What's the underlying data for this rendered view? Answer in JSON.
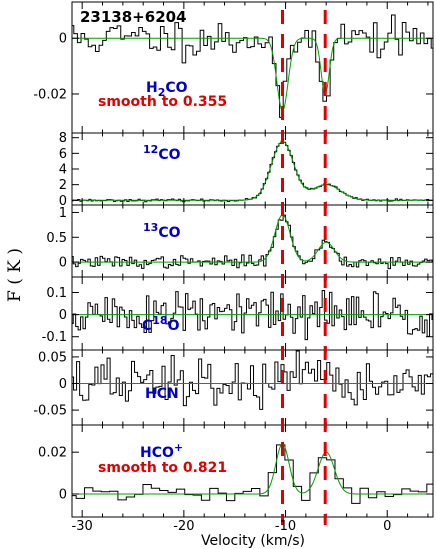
{
  "chart_data": {
    "type": "line",
    "title": "23138+6204",
    "xlabel": "Velocity (km/s)",
    "ylabel": "F ( K )",
    "xlim": [
      -31,
      4.5
    ],
    "xticks": [
      "-30",
      "-20",
      "-10",
      "0"
    ],
    "xtick_values": [
      -30,
      -20,
      -10,
      0
    ],
    "vlines": [
      -10.3,
      -6.1
    ],
    "colors": {
      "observed": "#000000",
      "fit": "#00a000",
      "vline": "#e00000",
      "molecule": "#0000cc"
    },
    "panels": [
      {
        "id": "h2co",
        "molecule": "H2CO",
        "mol_main": "H",
        "mol_sub": "2",
        "mol_tail": "CO",
        "smooth": "smooth to 0.355",
        "ylim": [
          -0.034,
          0.013
        ],
        "yticks": [
          0,
          -0.02
        ],
        "ytick_labels": [
          "0",
          "-0.02"
        ],
        "channel_width": 0.355,
        "seed": 11,
        "noise": 0.0035,
        "components": [
          {
            "amp": -0.026,
            "center": -10.3,
            "width": 0.55
          },
          {
            "amp": -0.02,
            "center": -6.1,
            "width": 0.4
          }
        ]
      },
      {
        "id": "co12",
        "molecule": "12CO",
        "mol_sup": "12",
        "mol_tail": "CO",
        "ylim": [
          -0.6,
          8.6
        ],
        "yticks": [
          0,
          2,
          4,
          6,
          8
        ],
        "ytick_labels": [
          "0",
          "2",
          "4",
          "6",
          "8"
        ],
        "channel_width": 0.22,
        "seed": 23,
        "noise": 0.07,
        "components": [
          {
            "amp": 7.5,
            "center": -10.3,
            "width": 1.1
          },
          {
            "amp": 2.0,
            "center": -6.0,
            "width": 1.4
          }
        ]
      },
      {
        "id": "co13",
        "molecule": "13CO",
        "mol_sup": "13",
        "mol_tail": "CO",
        "ylim": [
          -0.3,
          1.15
        ],
        "yticks": [
          0,
          0.5,
          1
        ],
        "ytick_labels": [
          "0",
          "0.5",
          "1"
        ],
        "channel_width": 0.24,
        "seed": 37,
        "noise": 0.06,
        "components": [
          {
            "amp": 0.95,
            "center": -10.3,
            "width": 0.75
          },
          {
            "amp": 0.4,
            "center": -6.0,
            "width": 0.8
          }
        ]
      },
      {
        "id": "c18o",
        "molecule": "C18O",
        "mol_main": "C",
        "mol_sup": "18",
        "mol_tail": "O",
        "ylim": [
          -0.16,
          0.17
        ],
        "yticks": [
          0.1,
          0,
          -0.1
        ],
        "ytick_labels": [
          "0.1",
          "0",
          "-0.1"
        ],
        "channel_width": 0.24,
        "seed": 51,
        "noise": 0.055,
        "components": []
      },
      {
        "id": "hcn",
        "molecule": "HCN",
        "mol_tail": "HCN",
        "ylim": [
          -0.078,
          0.063
        ],
        "yticks": [
          0.05,
          0,
          -0.05
        ],
        "ytick_labels": [
          "0.05",
          "0",
          "-0.05"
        ],
        "channel_width": 0.3,
        "seed": 67,
        "noise": 0.024,
        "components": []
      },
      {
        "id": "hcop",
        "molecule": "HCO+",
        "mol_main": "HCO",
        "mol_sup": "+",
        "smooth": "smooth to 0.821",
        "ylim": [
          -0.011,
          0.033
        ],
        "yticks": [
          0.02,
          0
        ],
        "ytick_labels": [
          "0.02",
          "0"
        ],
        "channel_width": 0.821,
        "seed": 79,
        "noise": 0.0022,
        "components": [
          {
            "amp": 0.024,
            "center": -10.3,
            "width": 0.65
          },
          {
            "amp": 0.02,
            "center": -6.0,
            "width": 0.8
          }
        ]
      }
    ]
  }
}
